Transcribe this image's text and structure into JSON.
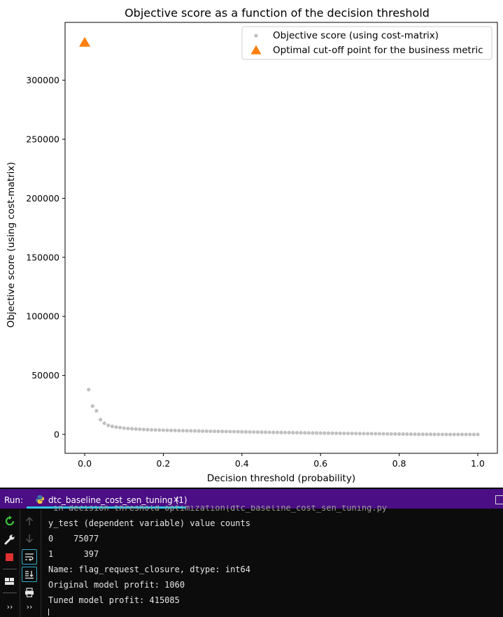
{
  "chart_data": {
    "type": "scatter",
    "title": "Objective score as a function of the decision threshold",
    "xlabel": "Decision threshold (probability)",
    "ylabel": "Objective score (using cost-matrix)",
    "xlim": [
      -0.05,
      1.05
    ],
    "ylim": [
      -16000,
      349000
    ],
    "xticks": [
      0.0,
      0.2,
      0.4,
      0.6,
      0.8,
      1.0
    ],
    "xtick_labels": [
      "0.0",
      "0.2",
      "0.4",
      "0.6",
      "0.8",
      "1.0"
    ],
    "yticks": [
      0,
      50000,
      100000,
      150000,
      200000,
      250000,
      300000
    ],
    "ytick_labels": [
      "0",
      "50000",
      "100000",
      "150000",
      "200000",
      "250000",
      "300000"
    ],
    "legend_position": "top-right",
    "grid": false,
    "series": [
      {
        "name": "Objective score (using cost-matrix)",
        "marker": "dot",
        "color": "#c0c0c0",
        "x": [
          0.01,
          0.02,
          0.03,
          0.04,
          0.05,
          0.06,
          0.07,
          0.08,
          0.09,
          0.1,
          0.11,
          0.12,
          0.13,
          0.14,
          0.15,
          0.16,
          0.17,
          0.18,
          0.19,
          0.2,
          0.21,
          0.22,
          0.23,
          0.24,
          0.25,
          0.26,
          0.27,
          0.28,
          0.29,
          0.3,
          0.31,
          0.32,
          0.33,
          0.34,
          0.35,
          0.36,
          0.37,
          0.38,
          0.39,
          0.4,
          0.41,
          0.42,
          0.43,
          0.44,
          0.45,
          0.46,
          0.47,
          0.48,
          0.49,
          0.5,
          0.51,
          0.52,
          0.53,
          0.54,
          0.55,
          0.56,
          0.57,
          0.58,
          0.59,
          0.6,
          0.61,
          0.62,
          0.63,
          0.64,
          0.65,
          0.66,
          0.67,
          0.68,
          0.69,
          0.7,
          0.71,
          0.72,
          0.73,
          0.74,
          0.75,
          0.76,
          0.77,
          0.78,
          0.79,
          0.8,
          0.81,
          0.82,
          0.83,
          0.84,
          0.85,
          0.86,
          0.87,
          0.88,
          0.89,
          0.9,
          0.91,
          0.92,
          0.93,
          0.94,
          0.95,
          0.96,
          0.97,
          0.98,
          0.99,
          1.0
        ],
        "y": [
          38000,
          24000,
          20000,
          12500,
          9500,
          7700,
          6800,
          6200,
          5800,
          5300,
          5000,
          4800,
          4600,
          4400,
          4200,
          4050,
          3900,
          3800,
          3700,
          3600,
          3500,
          3420,
          3340,
          3260,
          3180,
          3100,
          3030,
          2960,
          2890,
          2820,
          2760,
          2700,
          2640,
          2580,
          2520,
          2460,
          2400,
          2340,
          2280,
          2220,
          2160,
          2100,
          2040,
          1980,
          1920,
          1860,
          1800,
          1740,
          1690,
          1640,
          1590,
          1540,
          1490,
          1440,
          1390,
          1340,
          1290,
          1240,
          1190,
          1140,
          1100,
          1060,
          1020,
          980,
          940,
          900,
          860,
          820,
          780,
          740,
          700,
          660,
          620,
          580,
          540,
          500,
          460,
          420,
          380,
          340,
          300,
          260,
          220,
          180,
          150,
          120,
          100,
          80,
          60,
          40,
          30,
          20,
          10,
          5,
          0,
          0,
          0,
          0,
          0,
          0
        ]
      },
      {
        "name": "Optimal cut-off point for the business metric",
        "marker": "triangle",
        "color": "#ff7f0e",
        "x": [
          0.0
        ],
        "y": [
          332000
        ]
      }
    ]
  },
  "run_panel": {
    "label": "Run:",
    "tab_title": "dtc_baseline_cost_sen_tuning (1)",
    "tab_close": "×",
    "console_lines": [
      " in decision threshold optimization(dtc_baseline_cost_sen_tuning.py",
      "y_test (dependent variable) value counts",
      "0    75077",
      "1      397",
      "Name: flag_request_closure, dtype: int64",
      "Original model profit: 1060",
      "Tuned model profit: 415085"
    ],
    "toolbar_left": [
      "rerun-icon",
      "wrench-icon",
      "stop-icon",
      "layout-icon",
      "more-icon"
    ],
    "toolbar_mid": [
      "up-arrow-icon",
      "down-arrow-icon",
      "soft-wrap-icon",
      "scroll-to-end-icon",
      "print-icon",
      "more-icon"
    ],
    "more_glyph": "››",
    "colors": {
      "header_bg": "#4b0e85",
      "tab_underline": "#35c4e8",
      "console_bg": "#0c0c0c",
      "rerun": "#3ec43e",
      "stop": "#e03030"
    }
  }
}
